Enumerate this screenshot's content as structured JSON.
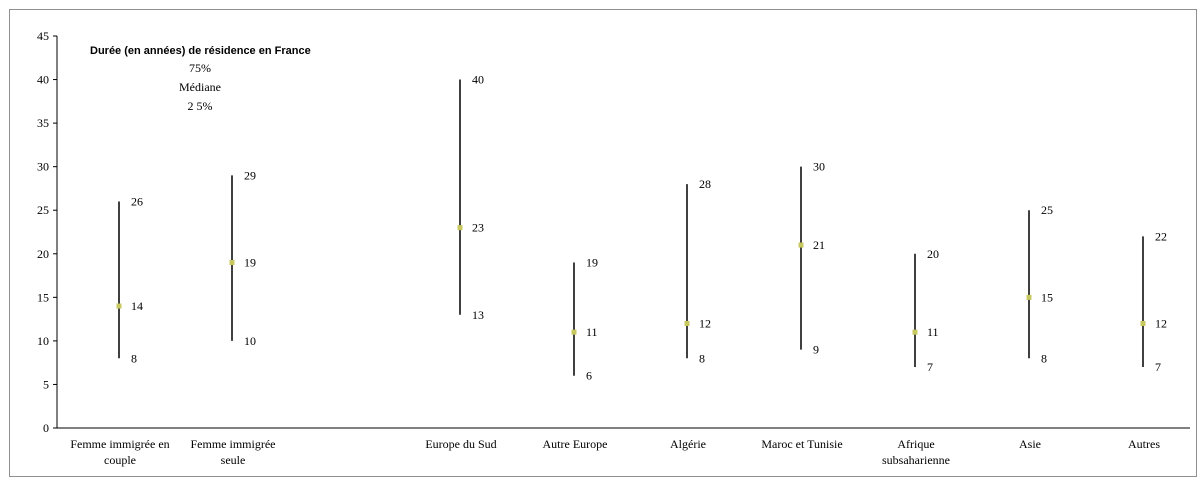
{
  "chart_data": {
    "type": "range",
    "title": "Durée (en années) de résidence en France",
    "legend_lines": [
      "75%",
      "Médiane",
      "2 5%"
    ],
    "ylim": [
      0,
      45
    ],
    "yticks": [
      0,
      5,
      10,
      15,
      20,
      25,
      30,
      35,
      40,
      45
    ],
    "categories": [
      [
        "Femme immigrée en",
        "couple"
      ],
      [
        "Femme immigrée",
        "seule"
      ],
      [
        "Europe du Sud"
      ],
      [
        "Autre Europe"
      ],
      [
        "Algérie"
      ],
      [
        "Maroc et Tunisie"
      ],
      [
        "Afrique",
        "subsaharienne"
      ],
      [
        "Asie"
      ],
      [
        "Autres"
      ]
    ],
    "series": [
      {
        "name": "25%",
        "values": [
          8,
          10,
          13,
          6,
          8,
          9,
          7,
          8,
          7
        ]
      },
      {
        "name": "Médiane",
        "values": [
          14,
          19,
          23,
          11,
          12,
          21,
          11,
          15,
          12
        ]
      },
      {
        "name": "75%",
        "values": [
          26,
          29,
          40,
          19,
          28,
          30,
          20,
          25,
          22
        ]
      }
    ],
    "colors": {
      "range_line": "#000000",
      "median_marker": "#c8c860",
      "axis": "#000000"
    },
    "grid": false
  }
}
